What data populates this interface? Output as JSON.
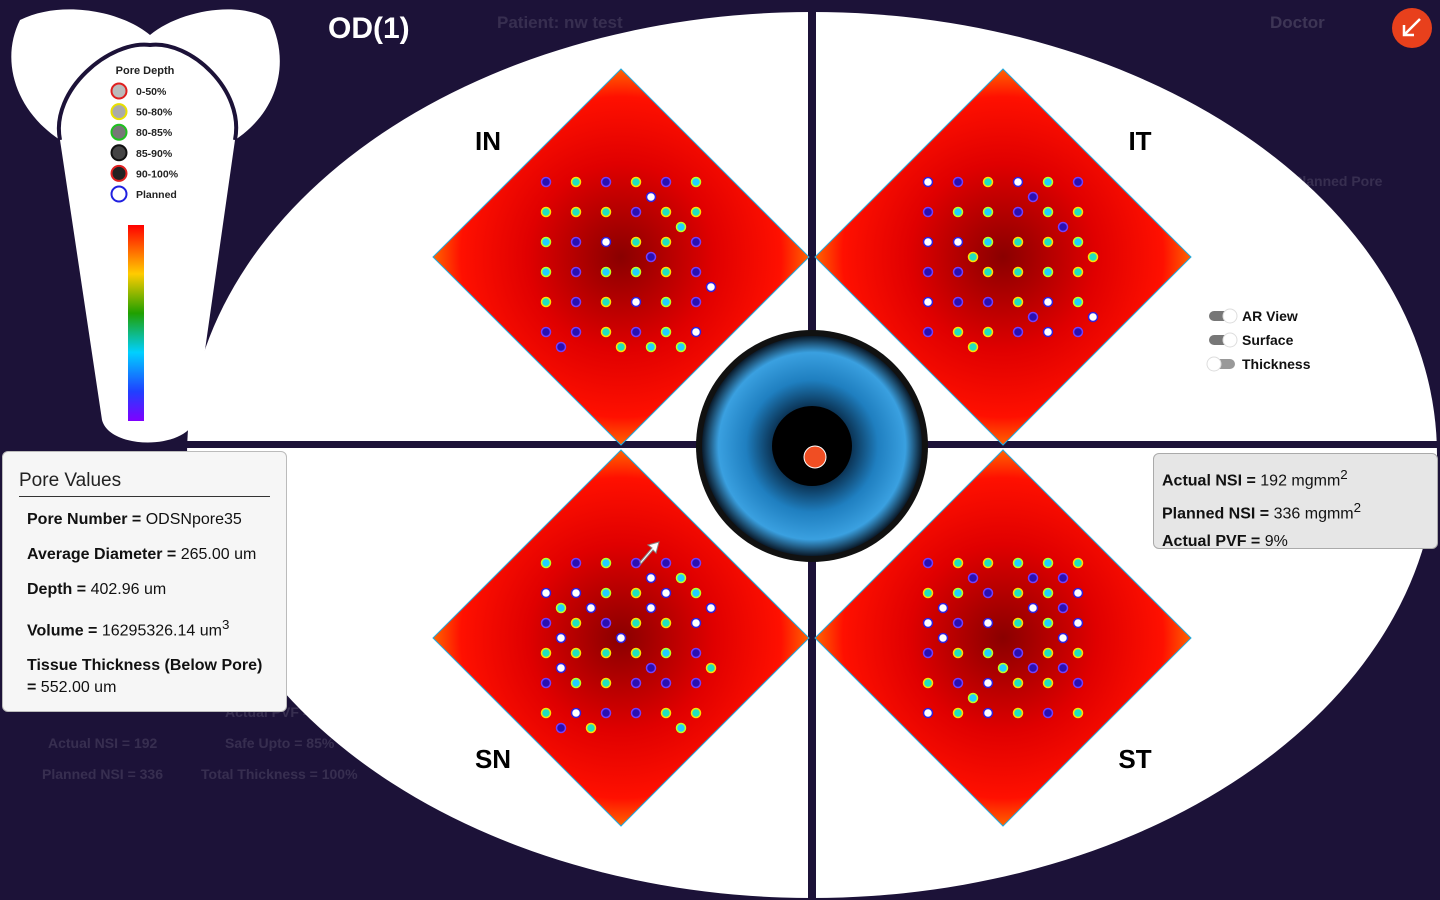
{
  "header": {
    "title": "OD(1)",
    "patient": "Patient: nw test",
    "user": "Doctor"
  },
  "quadrants": [
    "IN",
    "IT",
    "SN",
    "ST"
  ],
  "legend": {
    "title": "Pore Depth",
    "items": [
      "0-50%",
      "50-80%",
      "80-85%",
      "85-90%",
      "90-100%",
      "Planned"
    ]
  },
  "toggles": [
    "AR View",
    "Surface",
    "Thickness"
  ],
  "pore_values": {
    "title": "Pore Values",
    "rows": [
      {
        "label": "Pore Number =",
        "value": "ODSNpore35"
      },
      {
        "label": "Average Diameter =",
        "value": "265.00 um"
      },
      {
        "label": "Depth =",
        "value": "402.96 um"
      },
      {
        "label": "Volume =",
        "value": "16295326.14 um",
        "sup": "3"
      },
      {
        "label": "Tissue Thickness (Below Pore) =",
        "value": "552.00 um"
      }
    ]
  },
  "nsi": {
    "rows": [
      {
        "label": "Actual NSI =",
        "value": "192 mgmm",
        "sup": "2"
      },
      {
        "label": "Planned NSI =",
        "value": "336 mgmm",
        "sup": "2"
      },
      {
        "label": "Actual PVF =",
        "value": "9%"
      }
    ]
  },
  "background_text": [
    "Planned Pore",
    "Actual NSI = 192",
    "Planned NSI = 336",
    "Safe Upto = 85%",
    "Total Thickness = 100%",
    "Actual PVF = 9%"
  ]
}
